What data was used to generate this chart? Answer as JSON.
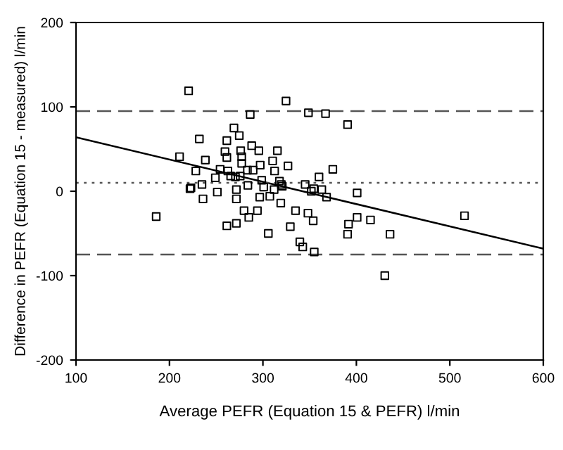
{
  "chart_data": {
    "type": "scatter",
    "xlabel": "Average PEFR (Equation 15 & PEFR) l/min",
    "ylabel": "Difference in PEFR (Equation 15 - measured) l/min",
    "xlim": [
      100,
      600
    ],
    "ylim": [
      -200,
      200
    ],
    "xticks": [
      100,
      200,
      300,
      400,
      500,
      600
    ],
    "yticks": [
      -200,
      -100,
      0,
      100,
      200
    ],
    "grid": false,
    "legend": false,
    "series": [
      {
        "marker": "square",
        "color": "#000000",
        "x": [
          220.5,
          324.7,
          286.4,
          348.7,
          367,
          390.6,
          269,
          232,
          274.7,
          261.4,
          288,
          210.8,
          259.4,
          276.2,
          295.6,
          315.5,
          261.4,
          277.3,
          238.4,
          310.4,
          277.3,
          297.1,
          326.8,
          254.2,
          228.2,
          262.5,
          283.4,
          289.5,
          312.5,
          374.8,
          249.1,
          265.5,
          270.6,
          275.7,
          298.7,
          360,
          234.8,
          283.9,
          317.7,
          319.7,
          345.2,
          222,
          223,
          271.6,
          251.2,
          300.8,
          312,
          320.7,
          351.8,
          354.4,
          363,
          400.8,
          235.9,
          271.6,
          296.6,
          307.4,
          368.1,
          319.1,
          279.8,
          294.1,
          334.9,
          348.2,
          185.8,
          284.9,
          353.8,
          400.8,
          415.1,
          515.7,
          261.4,
          271.6,
          329.3,
          391.6,
          305.8,
          390.6,
          436,
          339.5,
          342.6,
          354.9,
          430.4
        ],
        "values": [
          119,
          107,
          91,
          93,
          92,
          79,
          75,
          62,
          66,
          60,
          54,
          41,
          47,
          48,
          48,
          48,
          40,
          41,
          37,
          36,
          33,
          31,
          30,
          26,
          24,
          24,
          25,
          25,
          24,
          26,
          16,
          18,
          17,
          18,
          13,
          17,
          8,
          7,
          12,
          8,
          8,
          3,
          4,
          2,
          -1,
          5,
          2,
          6,
          0,
          3,
          2,
          -2,
          -9,
          -9,
          -7,
          -6,
          -7,
          -14,
          -23,
          -23,
          -23,
          -26,
          -30,
          -31,
          -35,
          -31,
          -34,
          -29,
          -41,
          -38,
          -42,
          -39,
          -50,
          -51,
          -51,
          -60,
          -66,
          -72,
          -100
        ]
      },
      {
        "type": "line",
        "color": "#000000",
        "line_style": "solid",
        "x": [
          100,
          600
        ],
        "values": [
          64,
          -68
        ]
      }
    ],
    "ref_lines": [
      {
        "axis": "y",
        "value": 95,
        "line_style": "dashed",
        "color": "#555555"
      },
      {
        "axis": "y",
        "value": 10,
        "line_style": "dotted",
        "color": "#555555"
      },
      {
        "axis": "y",
        "value": -75,
        "line_style": "dashed",
        "color": "#555555"
      }
    ]
  }
}
